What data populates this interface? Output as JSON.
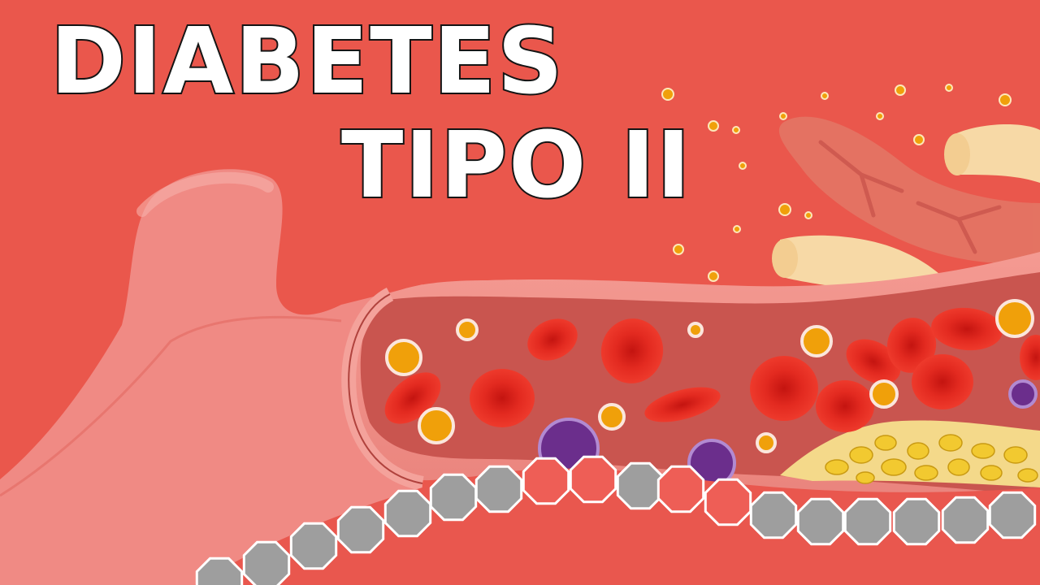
{
  "title": {
    "line1": "DIABETES",
    "line2": "TIPO II"
  },
  "colors": {
    "background": "#EA574C",
    "vessel_wall": "#F08A84",
    "vessel_inner": "#C9554F",
    "red_blood_cell": "#E8231C",
    "glucose": "#F0A00A",
    "insulin_receptor": "#6B2E8C",
    "fat_plaque": "#F2C930",
    "pancreas": "#E27C6A",
    "intestine": "#F7D9A6",
    "cell_membrane_gray": "#9E9E9E",
    "cell_membrane_red": "#EE5E56"
  },
  "scene": {
    "subject": "illustration",
    "elements": [
      "blood-vessel",
      "red-blood-cells",
      "glucose-molecules",
      "insulin-receptors",
      "fat-plaque",
      "pancreas",
      "intestine",
      "cell-membrane"
    ]
  }
}
